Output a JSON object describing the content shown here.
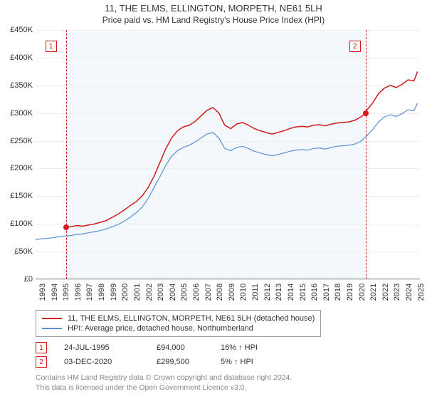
{
  "title": "11, THE ELMS, ELLINGTON, MORPETH, NE61 5LH",
  "subtitle": "Price paid vs. HM Land Registry's House Price Index (HPI)",
  "chart": {
    "type": "line",
    "background_color": "#ffffff",
    "highlight_band_color": "#f3f8fb",
    "grid_color": "#eeeeee",
    "axis_font_size": 11,
    "x": {
      "min": 1993,
      "max": 2025.5,
      "ticks": [
        1993,
        1994,
        1995,
        1996,
        1997,
        1998,
        1999,
        2000,
        2001,
        2002,
        2003,
        2004,
        2005,
        2006,
        2007,
        2008,
        2009,
        2010,
        2011,
        2012,
        2013,
        2014,
        2015,
        2016,
        2017,
        2018,
        2019,
        2020,
        2021,
        2022,
        2023,
        2024,
        2025
      ]
    },
    "y": {
      "min": 0,
      "max": 450000,
      "ticks": [
        0,
        50000,
        100000,
        150000,
        200000,
        250000,
        300000,
        350000,
        400000,
        450000
      ],
      "tick_labels": [
        "£0",
        "£50K",
        "£100K",
        "£150K",
        "£200K",
        "£250K",
        "£300K",
        "£350K",
        "£400K",
        "£450K"
      ]
    },
    "highlight_band": {
      "from": 1995.56,
      "to": 2020.92
    },
    "dash_lines": [
      {
        "x": 1995.56,
        "color": "#d01c1c"
      },
      {
        "x": 2020.92,
        "color": "#d01c1c"
      }
    ],
    "series": [
      {
        "name": "price_paid",
        "color": "#d01c1c",
        "width": 1.5,
        "data": [
          [
            1995.56,
            94000
          ],
          [
            1996,
            95000
          ],
          [
            1996.5,
            97000
          ],
          [
            1997,
            96000
          ],
          [
            1997.5,
            98000
          ],
          [
            1998,
            100000
          ],
          [
            1998.5,
            103000
          ],
          [
            1999,
            106000
          ],
          [
            1999.5,
            112000
          ],
          [
            2000,
            118000
          ],
          [
            2000.5,
            125000
          ],
          [
            2001,
            133000
          ],
          [
            2001.5,
            140000
          ],
          [
            2002,
            150000
          ],
          [
            2002.5,
            165000
          ],
          [
            2003,
            185000
          ],
          [
            2003.5,
            210000
          ],
          [
            2004,
            235000
          ],
          [
            2004.5,
            255000
          ],
          [
            2005,
            268000
          ],
          [
            2005.5,
            275000
          ],
          [
            2006,
            278000
          ],
          [
            2006.5,
            285000
          ],
          [
            2007,
            295000
          ],
          [
            2007.5,
            305000
          ],
          [
            2008,
            310000
          ],
          [
            2008.5,
            300000
          ],
          [
            2009,
            278000
          ],
          [
            2009.5,
            272000
          ],
          [
            2010,
            280000
          ],
          [
            2010.5,
            283000
          ],
          [
            2011,
            278000
          ],
          [
            2011.5,
            272000
          ],
          [
            2012,
            268000
          ],
          [
            2012.5,
            265000
          ],
          [
            2013,
            262000
          ],
          [
            2013.5,
            265000
          ],
          [
            2014,
            268000
          ],
          [
            2014.5,
            272000
          ],
          [
            2015,
            275000
          ],
          [
            2015.5,
            276000
          ],
          [
            2016,
            275000
          ],
          [
            2016.5,
            278000
          ],
          [
            2017,
            279000
          ],
          [
            2017.5,
            277000
          ],
          [
            2018,
            280000
          ],
          [
            2018.5,
            282000
          ],
          [
            2019,
            283000
          ],
          [
            2019.5,
            284000
          ],
          [
            2020,
            287000
          ],
          [
            2020.5,
            293000
          ],
          [
            2020.92,
            299500
          ],
          [
            2021,
            305000
          ],
          [
            2021.5,
            318000
          ],
          [
            2022,
            335000
          ],
          [
            2022.5,
            345000
          ],
          [
            2023,
            350000
          ],
          [
            2023.5,
            346000
          ],
          [
            2024,
            352000
          ],
          [
            2024.5,
            360000
          ],
          [
            2025,
            358000
          ],
          [
            2025.3,
            375000
          ]
        ]
      },
      {
        "name": "hpi",
        "color": "#5b8fd6",
        "width": 1.2,
        "data": [
          [
            1993,
            72000
          ],
          [
            1993.5,
            73000
          ],
          [
            1994,
            74000
          ],
          [
            1994.5,
            75000
          ],
          [
            1995,
            77000
          ],
          [
            1995.5,
            78000
          ],
          [
            1996,
            79000
          ],
          [
            1996.5,
            81000
          ],
          [
            1997,
            82000
          ],
          [
            1997.5,
            84000
          ],
          [
            1998,
            86000
          ],
          [
            1998.5,
            88000
          ],
          [
            1999,
            91000
          ],
          [
            1999.5,
            95000
          ],
          [
            2000,
            99000
          ],
          [
            2000.5,
            105000
          ],
          [
            2001,
            112000
          ],
          [
            2001.5,
            120000
          ],
          [
            2002,
            130000
          ],
          [
            2002.5,
            145000
          ],
          [
            2003,
            165000
          ],
          [
            2003.5,
            185000
          ],
          [
            2004,
            205000
          ],
          [
            2004.5,
            222000
          ],
          [
            2005,
            232000
          ],
          [
            2005.5,
            238000
          ],
          [
            2006,
            242000
          ],
          [
            2006.5,
            248000
          ],
          [
            2007,
            255000
          ],
          [
            2007.5,
            262000
          ],
          [
            2008,
            265000
          ],
          [
            2008.5,
            255000
          ],
          [
            2009,
            236000
          ],
          [
            2009.5,
            232000
          ],
          [
            2010,
            238000
          ],
          [
            2010.5,
            240000
          ],
          [
            2011,
            236000
          ],
          [
            2011.5,
            231000
          ],
          [
            2012,
            228000
          ],
          [
            2012.5,
            225000
          ],
          [
            2013,
            223000
          ],
          [
            2013.5,
            225000
          ],
          [
            2014,
            228000
          ],
          [
            2014.5,
            231000
          ],
          [
            2015,
            233000
          ],
          [
            2015.5,
            234000
          ],
          [
            2016,
            233000
          ],
          [
            2016.5,
            236000
          ],
          [
            2017,
            237000
          ],
          [
            2017.5,
            235000
          ],
          [
            2018,
            238000
          ],
          [
            2018.5,
            240000
          ],
          [
            2019,
            241000
          ],
          [
            2019.5,
            242000
          ],
          [
            2020,
            244000
          ],
          [
            2020.5,
            249000
          ],
          [
            2021,
            259000
          ],
          [
            2021.5,
            270000
          ],
          [
            2022,
            284000
          ],
          [
            2022.5,
            293000
          ],
          [
            2023,
            297000
          ],
          [
            2023.5,
            294000
          ],
          [
            2024,
            299000
          ],
          [
            2024.5,
            306000
          ],
          [
            2025,
            304000
          ],
          [
            2025.3,
            318000
          ]
        ]
      }
    ],
    "markers": [
      {
        "id": 1,
        "x": 1995.56,
        "y": 94000,
        "color": "#d01c1c",
        "box_x": 1994.3,
        "box_y": 420000
      },
      {
        "id": 2,
        "x": 2020.92,
        "y": 299500,
        "color": "#d01c1c",
        "box_x": 2020.0,
        "box_y": 420000
      }
    ]
  },
  "legend": {
    "items": [
      {
        "color": "#d01c1c",
        "label": "11, THE ELMS, ELLINGTON, MORPETH, NE61 5LH (detached house)"
      },
      {
        "color": "#5b8fd6",
        "label": "HPI: Average price, detached house, Northumberland"
      }
    ]
  },
  "points": [
    {
      "id": "1",
      "color": "#d01c1c",
      "date": "24-JUL-1995",
      "price": "£94,000",
      "hpi": "16% ↑ HPI"
    },
    {
      "id": "2",
      "color": "#d01c1c",
      "date": "03-DEC-2020",
      "price": "£299,500",
      "hpi": "5% ↑ HPI"
    }
  ],
  "footer": {
    "line1": "Contains HM Land Registry data © Crown copyright and database right 2024.",
    "line2": "This data is licensed under the Open Government Licence v3.0."
  }
}
